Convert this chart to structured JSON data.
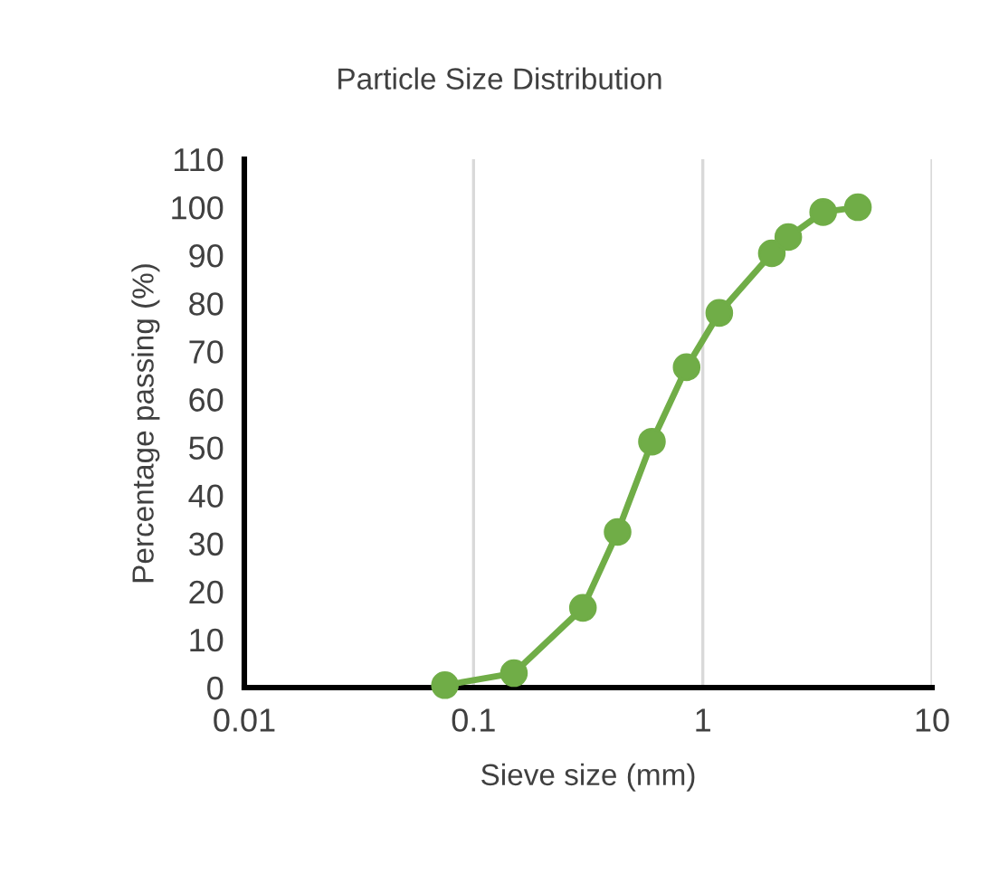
{
  "chart_data": {
    "type": "line",
    "title": "Particle Size Distribution",
    "xlabel": "Sieve size (mm)",
    "ylabel": "Percentage passing (%)",
    "log": "x",
    "xlim": [
      0.01,
      10
    ],
    "xticks": [
      0.01,
      0.1,
      1,
      10
    ],
    "ylim": [
      0,
      110
    ],
    "yticks": [
      0,
      10,
      20,
      30,
      40,
      50,
      60,
      70,
      80,
      90,
      100,
      110
    ],
    "grid": "x",
    "marker": "circle",
    "line_style": "solid",
    "legend": false,
    "series": [
      {
        "color": "#70ad47",
        "x": [
          0.075,
          0.15,
          0.3,
          0.425,
          0.6,
          0.85,
          1.18,
          2,
          2.36,
          3.35,
          4.75
        ],
        "values": [
          0.5,
          3,
          16.6,
          32.4,
          51.2,
          66.7,
          78,
          90.4,
          93.8,
          99,
          100
        ]
      }
    ]
  }
}
